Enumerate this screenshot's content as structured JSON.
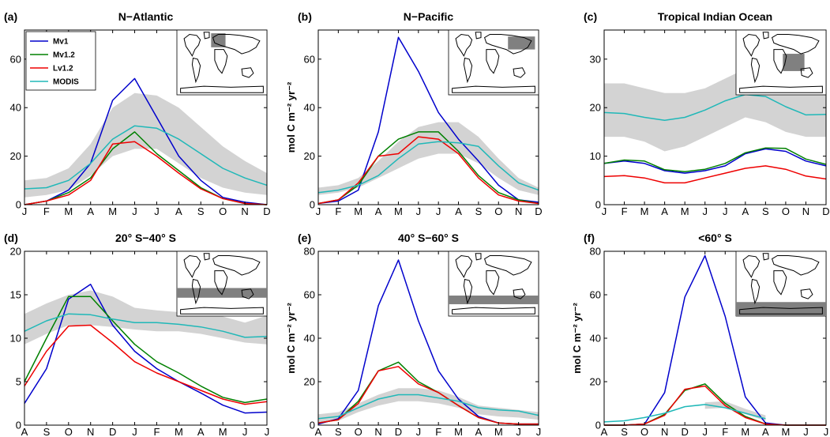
{
  "figure": {
    "ylabel": "mol C m⁻² yr⁻²",
    "legend": [
      {
        "name": "Mv1",
        "color": "#0000cc"
      },
      {
        "name": "Mv1.2",
        "color": "#008000"
      },
      {
        "name": "Lv1.2",
        "color": "#ee0000"
      },
      {
        "name": "MODIS",
        "color": "#20b8b8"
      }
    ],
    "band_color": "#d3d3d3",
    "map_shade_color": "#808080"
  },
  "chart_data": [
    {
      "type": "line",
      "label": "(a)",
      "title": "N−Atlantic",
      "categories": [
        "J",
        "F",
        "M",
        "A",
        "M",
        "J",
        "J",
        "A",
        "S",
        "O",
        "N",
        "D"
      ],
      "ylim": [
        0,
        72
      ],
      "yticks": [
        0,
        20,
        40,
        60
      ],
      "ylabel": "",
      "legend": true,
      "legend_position": "top-left",
      "band": {
        "lower": [
          3,
          4,
          6,
          12,
          20,
          23,
          23,
          17,
          11,
          7,
          5,
          4
        ],
        "upper": [
          10,
          11,
          15,
          25,
          40,
          46,
          45,
          40,
          32,
          24,
          18,
          13
        ]
      },
      "series": [
        {
          "name": "Mv1",
          "values": [
            0,
            1.5,
            6,
            17,
            43,
            52,
            36,
            20,
            10,
            3,
            1,
            0
          ]
        },
        {
          "name": "Mv1.2",
          "values": [
            0,
            1.5,
            5,
            11,
            23,
            30,
            21,
            14,
            7,
            2.5,
            0.5,
            0
          ]
        },
        {
          "name": "Lv1.2",
          "values": [
            0,
            1.5,
            4,
            10,
            25,
            26,
            20,
            13,
            6.5,
            2.5,
            0.5,
            0
          ]
        },
        {
          "name": "MODIS",
          "values": [
            6.5,
            7,
            10,
            17,
            27,
            32.5,
            31.5,
            27,
            21,
            15,
            11,
            8
          ]
        }
      ],
      "map_region": "north-atlantic"
    },
    {
      "type": "line",
      "label": "(b)",
      "title": "N−Pacific",
      "categories": [
        "J",
        "F",
        "M",
        "A",
        "M",
        "J",
        "J",
        "A",
        "S",
        "O",
        "N",
        "D"
      ],
      "ylim": [
        0,
        72
      ],
      "yticks": [
        0,
        20,
        40,
        60
      ],
      "ylabel": "mol C m⁻² yr⁻²",
      "legend": false,
      "band": {
        "lower": [
          4,
          5,
          7,
          11,
          15,
          19,
          21,
          21,
          17,
          11,
          6,
          4
        ],
        "upper": [
          7,
          8,
          11,
          18,
          26,
          32,
          34,
          34,
          28,
          19,
          11,
          7
        ]
      },
      "series": [
        {
          "name": "Mv1",
          "values": [
            0.5,
            1.5,
            6,
            30,
            69,
            55,
            38,
            27,
            18,
            8,
            2,
            1
          ]
        },
        {
          "name": "Mv1.2",
          "values": [
            0.5,
            2,
            8,
            20,
            27,
            30,
            30,
            22,
            12,
            5,
            2,
            0.5
          ]
        },
        {
          "name": "Lv1.2",
          "values": [
            0.5,
            2,
            9,
            20,
            21,
            28,
            27,
            21,
            11,
            4,
            1.5,
            0.5
          ]
        },
        {
          "name": "MODIS",
          "values": [
            5,
            6,
            8,
            12,
            19,
            25,
            26,
            25.5,
            24,
            16,
            9,
            6
          ]
        }
      ],
      "map_region": "north-pacific"
    },
    {
      "type": "line",
      "label": "(c)",
      "title": "Tropical Indian Ocean",
      "categories": [
        "J",
        "F",
        "M",
        "A",
        "M",
        "J",
        "J",
        "A",
        "S",
        "O",
        "N",
        "D"
      ],
      "ylim": [
        0,
        36
      ],
      "yticks": [
        0,
        10,
        20,
        30
      ],
      "ylabel": "",
      "legend": false,
      "band": {
        "lower": [
          14,
          14,
          13,
          11,
          12,
          14,
          16,
          18,
          17,
          15,
          14,
          14
        ],
        "upper": [
          25,
          25,
          24,
          23,
          23,
          24,
          26,
          28,
          27,
          25,
          24,
          24
        ]
      },
      "series": [
        {
          "name": "Mv1",
          "values": [
            8.5,
            9,
            8.5,
            7,
            6.5,
            7,
            8,
            10.5,
            11.5,
            11,
            9,
            8
          ]
        },
        {
          "name": "Mv1.2",
          "values": [
            8.5,
            9.2,
            9,
            7.2,
            6.8,
            7.3,
            8.5,
            10.7,
            11.7,
            11.6,
            9.4,
            8.3
          ]
        },
        {
          "name": "Lv1.2",
          "values": [
            5.8,
            6,
            5.5,
            4.5,
            4.5,
            5.5,
            6.5,
            7.5,
            8,
            7.3,
            5.9,
            5.3
          ]
        },
        {
          "name": "MODIS",
          "values": [
            19,
            18.8,
            18,
            17.4,
            18,
            19.5,
            21.4,
            22.7,
            22.3,
            20.2,
            18.5,
            18.6
          ]
        }
      ],
      "map_region": "tropical-indian"
    },
    {
      "type": "line",
      "label": "(d)",
      "title": "20° S−40° S",
      "categories": [
        "A",
        "S",
        "O",
        "N",
        "D",
        "J",
        "F",
        "M",
        "A",
        "M",
        "J",
        "J"
      ],
      "ylim": [
        0,
        20
      ],
      "yticks": [
        0,
        5,
        10,
        15,
        20
      ],
      "ylabel": "",
      "legend": false,
      "band": {
        "lower": [
          9.3,
          10.5,
          11.5,
          11.5,
          11.3,
          11,
          10.8,
          10.8,
          10.5,
          10,
          9.5,
          9.3
        ],
        "upper": [
          12.8,
          14,
          15,
          15.5,
          14.8,
          13.5,
          13.2,
          13,
          12.8,
          12.5,
          11.8,
          12.6
        ]
      },
      "series": [
        {
          "name": "Mv1",
          "values": [
            2.5,
            6.5,
            14.5,
            16.2,
            11.5,
            8.5,
            6.5,
            5,
            3.7,
            2.3,
            1.4,
            1.5
          ]
        },
        {
          "name": "Mv1.2",
          "values": [
            5,
            10,
            14.8,
            14.8,
            12,
            9.3,
            7.3,
            6,
            4.5,
            3.2,
            2.6,
            3
          ]
        },
        {
          "name": "Lv1.2",
          "values": [
            4.5,
            8.5,
            11.4,
            11.5,
            9.5,
            7.3,
            6,
            5,
            4,
            3,
            2.4,
            2.7
          ]
        },
        {
          "name": "MODIS",
          "values": [
            10.8,
            12,
            12.8,
            12.7,
            12.2,
            11.8,
            11.8,
            11.6,
            11.3,
            10.8,
            10.1,
            10.2
          ]
        }
      ],
      "map_region": "20S-40S"
    },
    {
      "type": "line",
      "label": "(e)",
      "title": "40° S−60° S",
      "categories": [
        "A",
        "S",
        "O",
        "N",
        "D",
        "J",
        "F",
        "M",
        "A",
        "M",
        "J",
        "J"
      ],
      "ylim": [
        0,
        80
      ],
      "yticks": [
        0,
        20,
        40,
        60,
        80
      ],
      "ylabel": "mol C m⁻² yr⁻²",
      "legend": false,
      "band": {
        "lower": [
          1,
          2,
          6,
          9,
          11,
          11,
          10,
          8,
          5,
          4,
          3.5,
          2.5
        ],
        "upper": [
          5,
          6,
          10,
          14,
          17,
          17,
          16,
          13,
          9,
          8,
          7,
          6
        ]
      },
      "series": [
        {
          "name": "Mv1",
          "values": [
            0.5,
            3,
            16,
            55,
            76,
            48,
            25,
            12,
            4,
            1,
            0.5,
            0.5
          ]
        },
        {
          "name": "Mv1.2",
          "values": [
            1,
            2.5,
            11,
            25,
            29,
            20,
            15,
            9,
            3.5,
            1,
            0.5,
            0.5
          ]
        },
        {
          "name": "Lv1.2",
          "values": [
            1,
            2.5,
            10,
            25,
            27,
            19,
            15,
            9,
            3.5,
            1,
            0.5,
            0.5
          ]
        },
        {
          "name": "MODIS",
          "values": [
            3,
            4,
            8,
            12,
            14,
            14,
            12.5,
            11,
            8,
            7,
            6.5,
            4.5
          ]
        }
      ],
      "map_region": "40S-60S"
    },
    {
      "type": "line",
      "label": "(f)",
      "title": "<60° S",
      "categories": [
        "A",
        "S",
        "O",
        "N",
        "D",
        "J",
        "F",
        "M",
        "A",
        "M",
        "J",
        "J"
      ],
      "ylim": [
        0,
        80
      ],
      "yticks": [
        0,
        20,
        40,
        60,
        80
      ],
      "ylabel": "mol C m⁻² yr⁻²",
      "legend": false,
      "band": {
        "lower": [
          null,
          null,
          null,
          null,
          null,
          7.5,
          8,
          5,
          2,
          null,
          null,
          null
        ],
        "upper": [
          null,
          null,
          null,
          null,
          null,
          10.5,
          11,
          7.5,
          4.5,
          null,
          null,
          null
        ]
      },
      "series": [
        {
          "name": "Mv1",
          "values": [
            0,
            0,
            0.5,
            15,
            59,
            78,
            50,
            13,
            1,
            0,
            0,
            0
          ]
        },
        {
          "name": "Mv1.2",
          "values": [
            0,
            0,
            0.5,
            5,
            16,
            19,
            10,
            4,
            0.5,
            0,
            0,
            0
          ]
        },
        {
          "name": "Lv1.2",
          "values": [
            0,
            0,
            0.5,
            4.5,
            16.5,
            18,
            9,
            3.5,
            0.5,
            0,
            0,
            0
          ]
        },
        {
          "name": "MODIS",
          "values": [
            1.5,
            2,
            3.5,
            5.5,
            8.5,
            9.5,
            8,
            5.5,
            3,
            null,
            null,
            null
          ]
        }
      ],
      "map_region": "south-of-60S"
    }
  ]
}
